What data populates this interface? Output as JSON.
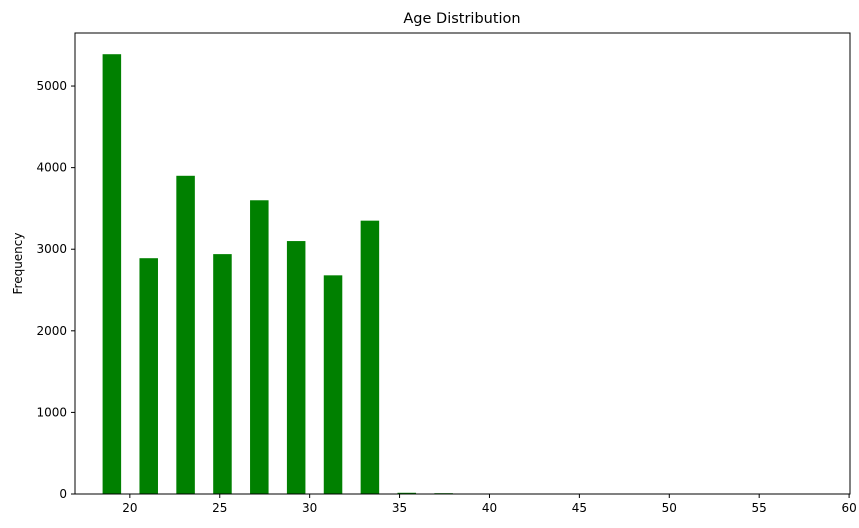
{
  "chart_data": {
    "type": "bar",
    "title": "Age Distribution",
    "xlabel": "",
    "ylabel": "Frequency",
    "xlim": [
      16.95,
      60.05
    ],
    "ylim": [
      0,
      5650
    ],
    "xticks": [
      20,
      25,
      30,
      35,
      40,
      45,
      50,
      55,
      60
    ],
    "yticks": [
      0,
      1000,
      2000,
      3000,
      4000,
      5000
    ],
    "grid": false,
    "legend": "none",
    "bar_width": 1.03,
    "bar_color": "#008000",
    "bars": [
      {
        "x": 19.0,
        "value": 5390
      },
      {
        "x": 21.05,
        "value": 2890
      },
      {
        "x": 23.1,
        "value": 3900
      },
      {
        "x": 25.15,
        "value": 2940
      },
      {
        "x": 27.2,
        "value": 3600
      },
      {
        "x": 29.25,
        "value": 3100
      },
      {
        "x": 31.3,
        "value": 2680
      },
      {
        "x": 33.35,
        "value": 3350
      },
      {
        "x": 35.4,
        "value": 15
      },
      {
        "x": 37.45,
        "value": 10
      }
    ]
  }
}
